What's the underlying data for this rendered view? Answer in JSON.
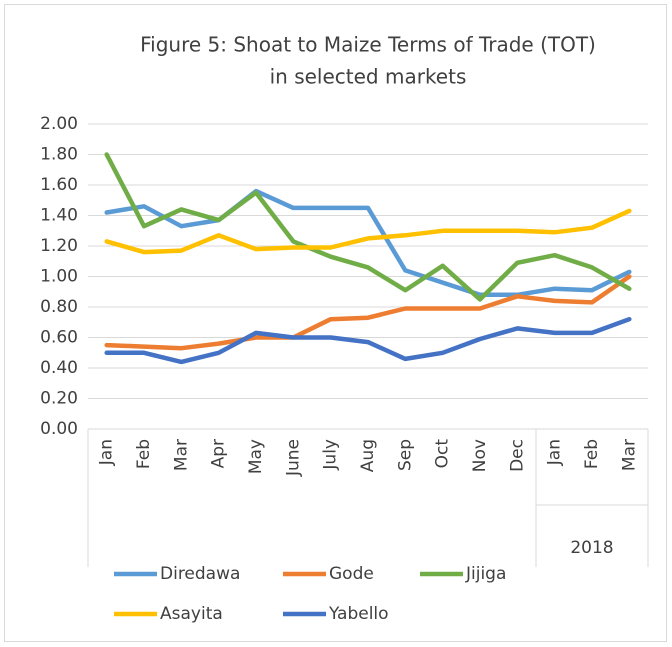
{
  "chart_data": {
    "type": "line",
    "title": [
      "Figure 5: Shoat to Maize Terms of Trade (TOT)",
      "in selected markets"
    ],
    "categories": [
      "Jan",
      "Feb",
      "Mar",
      "Apr",
      "May",
      "June",
      "July",
      "Aug",
      "Sep",
      "Oct",
      "Nov",
      "Dec",
      "Jan",
      "Feb",
      "Mar"
    ],
    "category_group": "2018",
    "ylim": [
      0,
      2
    ],
    "yticks": [
      {
        "value": 0,
        "label": "0.00"
      },
      {
        "value": 0.2,
        "label": "0.20"
      },
      {
        "value": 0.4,
        "label": "0.40"
      },
      {
        "value": 0.6,
        "label": "0.60"
      },
      {
        "value": 0.8,
        "label": "0.80"
      },
      {
        "value": 1,
        "label": "1.00"
      },
      {
        "value": 1.2,
        "label": "1.20"
      },
      {
        "value": 1.4,
        "label": "1.40"
      },
      {
        "value": 1.6,
        "label": "1.60"
      },
      {
        "value": 1.8,
        "label": "1.80"
      },
      {
        "value": 2,
        "label": "2.00"
      }
    ],
    "grid": true,
    "legend": "bottom",
    "series": [
      {
        "name": "Diredawa",
        "color": "#5b9bd5",
        "values": [
          1.42,
          1.46,
          1.33,
          1.37,
          1.56,
          1.45,
          1.45,
          1.45,
          1.04,
          0.96,
          0.88,
          0.88,
          0.92,
          0.91,
          1.03
        ]
      },
      {
        "name": "Gode",
        "color": "#ed7d31",
        "values": [
          0.55,
          0.54,
          0.53,
          0.56,
          0.6,
          0.6,
          0.72,
          0.73,
          0.79,
          0.79,
          0.79,
          0.87,
          0.84,
          0.83,
          1.0
        ]
      },
      {
        "name": "Jijiga",
        "color": "#70ad47",
        "values": [
          1.8,
          1.33,
          1.44,
          1.37,
          1.55,
          1.23,
          1.13,
          1.06,
          0.91,
          1.07,
          0.85,
          1.09,
          1.14,
          1.06,
          0.92
        ]
      },
      {
        "name": "Asayita",
        "color": "#ffc000",
        "values": [
          1.23,
          1.16,
          1.17,
          1.27,
          1.18,
          1.19,
          1.19,
          1.25,
          1.27,
          1.3,
          1.3,
          1.3,
          1.29,
          1.32,
          1.43
        ]
      },
      {
        "name": "Yabello",
        "color": "#4472c4",
        "values": [
          0.5,
          0.5,
          0.44,
          0.5,
          0.63,
          0.6,
          0.6,
          0.57,
          0.46,
          0.5,
          0.59,
          0.66,
          0.63,
          0.63,
          0.72
        ]
      }
    ]
  }
}
